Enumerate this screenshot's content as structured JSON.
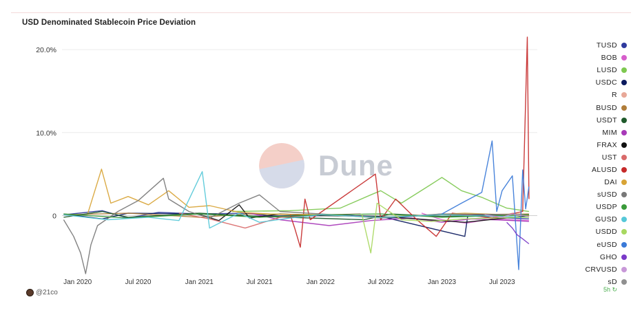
{
  "title": "USD Denominated Stablecoin Price Deviation",
  "credit": "@21co",
  "corner_badge": "5h",
  "watermark": "Dune",
  "chart_data": {
    "type": "line",
    "title": "USD Denominated Stablecoin Price Deviation",
    "xlabel": "",
    "ylabel": "",
    "x_ticks": [
      "Jan 2020",
      "Jul 2020",
      "Jan 2021",
      "Jul 2021",
      "Jan 2022",
      "Jul 2022",
      "Jan 2023",
      "Jul 2023"
    ],
    "y_ticks": [
      "0",
      "10.0%",
      "20.0%"
    ],
    "ylim": [
      -7,
      21
    ],
    "xlim": [
      "2019-11-15",
      "2023-10-15"
    ],
    "grid": "horizontal",
    "legend_position": "right",
    "series": [
      {
        "name": "TUSD",
        "color": "#2f3a9e",
        "points": [
          [
            "2019-11-20",
            0.1
          ],
          [
            "2020-03-15",
            0.6
          ],
          [
            "2020-06-01",
            -0.3
          ],
          [
            "2020-09-01",
            0.4
          ],
          [
            "2021-01-01",
            0.2
          ],
          [
            "2021-06-01",
            0.3
          ],
          [
            "2021-09-01",
            -0.2
          ],
          [
            "2022-03-01",
            0.1
          ],
          [
            "2022-08-01",
            -0.3
          ],
          [
            "2023-01-01",
            0.2
          ],
          [
            "2023-06-01",
            -0.2
          ],
          [
            "2023-09-20",
            -0.4
          ]
        ]
      },
      {
        "name": "BOB",
        "color": "#d65ecb",
        "points": [
          [
            "2022-11-01",
            0.3
          ],
          [
            "2023-01-01",
            -0.5
          ],
          [
            "2023-03-15",
            -0.9
          ],
          [
            "2023-06-01",
            -0.4
          ],
          [
            "2023-09-20",
            -0.6
          ]
        ]
      },
      {
        "name": "LUSD",
        "color": "#7ec850",
        "points": [
          [
            "2021-04-10",
            0.5
          ],
          [
            "2021-10-01",
            0.6
          ],
          [
            "2022-03-01",
            0.9
          ],
          [
            "2022-06-01",
            2.5
          ],
          [
            "2022-07-01",
            3.0
          ],
          [
            "2022-09-01",
            1.5
          ],
          [
            "2022-12-01",
            3.8
          ],
          [
            "2023-01-01",
            4.6
          ],
          [
            "2023-03-01",
            3.0
          ],
          [
            "2023-05-01",
            2.2
          ],
          [
            "2023-07-15",
            0.9
          ],
          [
            "2023-09-20",
            0.5
          ]
        ]
      },
      {
        "name": "USDC",
        "color": "#0b1a5e",
        "points": [
          [
            "2019-11-20",
            0.2
          ],
          [
            "2020-03-15",
            -0.4
          ],
          [
            "2020-06-01",
            0.3
          ],
          [
            "2021-01-01",
            0.2
          ],
          [
            "2021-07-01",
            -0.1
          ],
          [
            "2022-01-01",
            0.1
          ],
          [
            "2022-07-01",
            -0.1
          ],
          [
            "2023-03-11",
            -2.5
          ],
          [
            "2023-03-20",
            0.1
          ],
          [
            "2023-09-20",
            0.1
          ]
        ]
      },
      {
        "name": "R",
        "color": "#e8a898",
        "points": [
          [
            "2023-05-01",
            0.2
          ],
          [
            "2023-06-15",
            -0.4
          ],
          [
            "2023-08-01",
            0.3
          ],
          [
            "2023-09-20",
            -0.1
          ]
        ]
      },
      {
        "name": "BUSD",
        "color": "#b07d3a",
        "points": [
          [
            "2019-11-20",
            0.1
          ],
          [
            "2020-06-01",
            0.3
          ],
          [
            "2021-01-01",
            -0.2
          ],
          [
            "2021-06-01",
            0.2
          ],
          [
            "2022-01-01",
            0.1
          ],
          [
            "2022-07-01",
            -0.2
          ],
          [
            "2023-01-01",
            0.1
          ],
          [
            "2023-09-20",
            0.2
          ]
        ]
      },
      {
        "name": "USDT",
        "color": "#1f5a2b",
        "points": [
          [
            "2019-11-20",
            -0.2
          ],
          [
            "2020-03-15",
            0.5
          ],
          [
            "2020-06-01",
            -0.2
          ],
          [
            "2021-01-01",
            0.3
          ],
          [
            "2021-07-01",
            -0.1
          ],
          [
            "2022-05-12",
            -0.5
          ],
          [
            "2022-08-01",
            0.2
          ],
          [
            "2023-01-01",
            -0.1
          ],
          [
            "2023-09-20",
            0.1
          ]
        ]
      },
      {
        "name": "MIM",
        "color": "#a83ab8",
        "points": [
          [
            "2021-06-01",
            0.3
          ],
          [
            "2021-09-01",
            -0.5
          ],
          [
            "2022-01-27",
            -1.2
          ],
          [
            "2022-06-01",
            -0.6
          ],
          [
            "2022-10-01",
            -0.3
          ],
          [
            "2023-01-01",
            -0.8
          ],
          [
            "2023-04-01",
            -0.4
          ],
          [
            "2023-08-01",
            -0.6
          ],
          [
            "2023-09-20",
            -0.7
          ]
        ]
      },
      {
        "name": "FRAX",
        "color": "#111111",
        "points": [
          [
            "2020-12-20",
            0.3
          ],
          [
            "2021-03-01",
            -0.6
          ],
          [
            "2021-05-01",
            1.3
          ],
          [
            "2021-06-01",
            -0.3
          ],
          [
            "2021-09-01",
            0.2
          ],
          [
            "2022-01-01",
            0.0
          ],
          [
            "2022-07-01",
            -0.1
          ],
          [
            "2023-03-11",
            -0.8
          ],
          [
            "2023-09-20",
            0.0
          ]
        ]
      },
      {
        "name": "UST",
        "color": "#d96a6a",
        "points": [
          [
            "2020-11-01",
            0.3
          ],
          [
            "2021-02-01",
            -0.4
          ],
          [
            "2021-05-19",
            -1.5
          ],
          [
            "2021-09-01",
            -0.2
          ],
          [
            "2022-01-01",
            0.1
          ],
          [
            "2022-05-01",
            0.2
          ]
        ]
      },
      {
        "name": "ALUSD",
        "color": "#c62a2a",
        "points": [
          [
            "2021-10-01",
            0.2
          ],
          [
            "2021-10-15",
            -1.5
          ],
          [
            "2021-11-01",
            -3.8
          ],
          [
            "2021-11-15",
            2.0
          ],
          [
            "2021-12-01",
            -0.5
          ],
          [
            "2022-06-15",
            5.0
          ],
          [
            "2022-07-01",
            -0.5
          ],
          [
            "2022-08-15",
            2.0
          ],
          [
            "2022-10-15",
            -0.4
          ],
          [
            "2022-12-15",
            -2.5
          ],
          [
            "2023-02-01",
            0.3
          ],
          [
            "2023-06-01",
            -0.3
          ],
          [
            "2023-09-01",
            0.5
          ],
          [
            "2023-09-15",
            21.5
          ],
          [
            "2023-09-20",
            2.0
          ]
        ]
      },
      {
        "name": "DAI",
        "color": "#d8a436",
        "points": [
          [
            "2020-02-01",
            0.3
          ],
          [
            "2020-03-13",
            5.6
          ],
          [
            "2020-04-10",
            1.5
          ],
          [
            "2020-06-01",
            2.3
          ],
          [
            "2020-08-01",
            1.3
          ],
          [
            "2020-10-01",
            3.0
          ],
          [
            "2020-12-01",
            1.0
          ],
          [
            "2021-02-01",
            1.2
          ],
          [
            "2021-05-01",
            0.4
          ],
          [
            "2021-08-01",
            0.2
          ],
          [
            "2022-01-01",
            0.1
          ],
          [
            "2022-07-01",
            -0.2
          ],
          [
            "2023-03-11",
            0.3
          ],
          [
            "2023-09-20",
            0.0
          ]
        ]
      },
      {
        "name": "sUSD",
        "color": "#787878",
        "points": [
          [
            "2019-11-20",
            -0.5
          ],
          [
            "2019-12-20",
            -2.5
          ],
          [
            "2020-01-10",
            -4.5
          ],
          [
            "2020-01-25",
            -7.0
          ],
          [
            "2020-02-10",
            -3.5
          ],
          [
            "2020-03-01",
            -1.2
          ],
          [
            "2020-05-01",
            0.5
          ],
          [
            "2020-07-01",
            1.8
          ],
          [
            "2020-09-15",
            4.5
          ],
          [
            "2020-10-01",
            2.0
          ],
          [
            "2020-12-01",
            0.5
          ],
          [
            "2021-02-01",
            -0.3
          ],
          [
            "2021-05-01",
            1.5
          ],
          [
            "2021-07-01",
            2.5
          ],
          [
            "2021-09-01",
            0.5
          ],
          [
            "2022-01-01",
            0.2
          ],
          [
            "2022-07-01",
            -0.3
          ],
          [
            "2023-01-01",
            0.2
          ],
          [
            "2023-09-20",
            0.1
          ]
        ]
      },
      {
        "name": "USDP",
        "color": "#3a9a3a",
        "points": [
          [
            "2019-11-20",
            0.2
          ],
          [
            "2020-06-01",
            -0.3
          ],
          [
            "2021-01-01",
            0.2
          ],
          [
            "2021-07-01",
            -0.2
          ],
          [
            "2022-01-01",
            0.1
          ],
          [
            "2022-07-01",
            0.2
          ],
          [
            "2023-01-01",
            -0.2
          ],
          [
            "2023-09-20",
            0.1
          ]
        ]
      },
      {
        "name": "GUSD",
        "color": "#56c8d8",
        "points": [
          [
            "2019-11-20",
            0.1
          ],
          [
            "2020-04-01",
            -0.5
          ],
          [
            "2020-08-01",
            -0.2
          ],
          [
            "2020-11-01",
            -0.6
          ],
          [
            "2021-01-10",
            5.3
          ],
          [
            "2021-02-01",
            -1.5
          ],
          [
            "2021-05-01",
            0.3
          ],
          [
            "2021-07-01",
            -0.8
          ],
          [
            "2021-10-01",
            -0.3
          ],
          [
            "2022-01-01",
            0.1
          ],
          [
            "2022-07-01",
            -0.2
          ],
          [
            "2023-01-01",
            0.1
          ],
          [
            "2023-09-20",
            -0.2
          ]
        ]
      },
      {
        "name": "USDD",
        "color": "#a8d860",
        "points": [
          [
            "2022-05-05",
            0.2
          ],
          [
            "2022-06-01",
            -4.5
          ],
          [
            "2022-06-20",
            1.5
          ],
          [
            "2022-09-01",
            -0.5
          ],
          [
            "2022-12-01",
            -0.7
          ],
          [
            "2023-03-01",
            -0.4
          ],
          [
            "2023-06-01",
            -0.3
          ],
          [
            "2023-09-20",
            -0.2
          ]
        ]
      },
      {
        "name": "eUSD",
        "color": "#3a7ad8",
        "points": [
          [
            "2023-01-01",
            0.2
          ],
          [
            "2023-03-01",
            1.5
          ],
          [
            "2023-05-01",
            2.8
          ],
          [
            "2023-06-01",
            9.0
          ],
          [
            "2023-06-15",
            0.5
          ],
          [
            "2023-07-01",
            3.0
          ],
          [
            "2023-08-01",
            4.8
          ],
          [
            "2023-08-20",
            -6.5
          ],
          [
            "2023-09-01",
            5.5
          ],
          [
            "2023-09-10",
            0.8
          ],
          [
            "2023-09-20",
            3.5
          ]
        ]
      },
      {
        "name": "GHO",
        "color": "#7a3ac8",
        "points": [
          [
            "2023-07-15",
            -0.8
          ],
          [
            "2023-08-01",
            -1.5
          ],
          [
            "2023-08-15",
            -2.3
          ],
          [
            "2023-09-01",
            -2.8
          ],
          [
            "2023-09-20",
            -3.4
          ]
        ]
      },
      {
        "name": "CRVUSD",
        "color": "#c898d8",
        "points": [
          [
            "2023-05-10",
            0.1
          ],
          [
            "2023-07-01",
            -0.2
          ],
          [
            "2023-08-01",
            0.2
          ],
          [
            "2023-09-20",
            -0.1
          ]
        ]
      },
      {
        "name": "sDAI",
        "color": "#909090",
        "points": []
      }
    ]
  },
  "legend": [
    {
      "label": "TUSD",
      "color": "#2f3a9e"
    },
    {
      "label": "BOB",
      "color": "#d65ecb"
    },
    {
      "label": "LUSD",
      "color": "#7ec850"
    },
    {
      "label": "USDC",
      "color": "#0b1a5e"
    },
    {
      "label": "R",
      "color": "#e8a898"
    },
    {
      "label": "BUSD",
      "color": "#b07d3a"
    },
    {
      "label": "USDT",
      "color": "#1f5a2b"
    },
    {
      "label": "MIM",
      "color": "#a83ab8"
    },
    {
      "label": "FRAX",
      "color": "#111111"
    },
    {
      "label": "UST",
      "color": "#d96a6a"
    },
    {
      "label": "ALUSD",
      "color": "#c62a2a"
    },
    {
      "label": "DAI",
      "color": "#d8a436"
    },
    {
      "label": "sUSD",
      "color": "#787878"
    },
    {
      "label": "USDP",
      "color": "#3a9a3a"
    },
    {
      "label": "GUSD",
      "color": "#56c8d8"
    },
    {
      "label": "USDD",
      "color": "#a8d860"
    },
    {
      "label": "eUSD",
      "color": "#3a7ad8"
    },
    {
      "label": "GHO",
      "color": "#7a3ac8"
    },
    {
      "label": "CRVUSD",
      "color": "#c898d8"
    },
    {
      "label": "sD",
      "color": "#909090"
    }
  ]
}
